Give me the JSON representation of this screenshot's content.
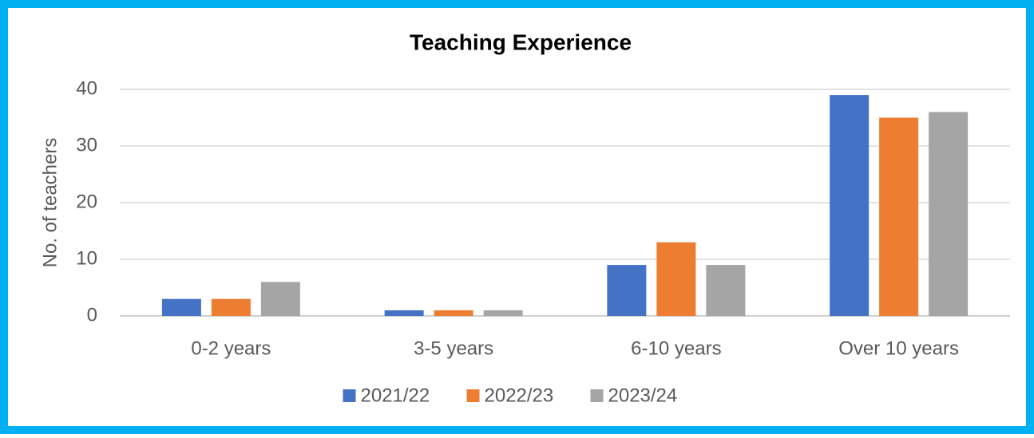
{
  "chart_data": {
    "type": "bar",
    "title": "Teaching Experience",
    "y_label": "No. of teachers",
    "categories": [
      "0-2 years",
      "3-5 years",
      "6-10 years",
      "Over 10 years"
    ],
    "series": [
      {
        "name": "2021/22",
        "color": "#4472c4",
        "values": [
          3,
          1,
          9,
          39
        ]
      },
      {
        "name": "2022/23",
        "color": "#ed7d31",
        "values": [
          3,
          1,
          13,
          35
        ]
      },
      {
        "name": "2023/24",
        "color": "#a5a5a5",
        "values": [
          6,
          1,
          9,
          36
        ]
      }
    ],
    "ylim": [
      0,
      40
    ],
    "yticks": [
      0,
      10,
      20,
      30,
      40
    ],
    "grid": true,
    "legend": "bottom"
  }
}
